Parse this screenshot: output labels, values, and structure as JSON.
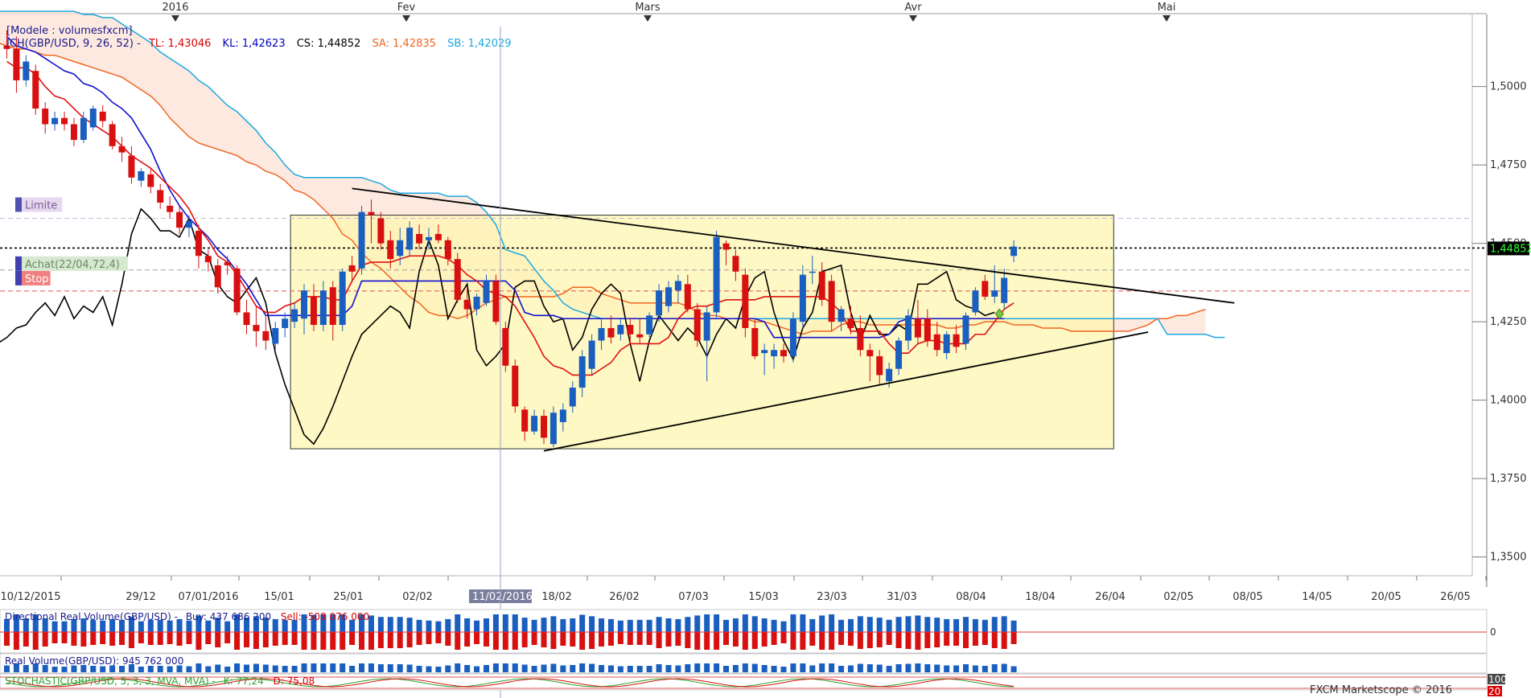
{
  "chart_data": {
    "type": "candlestick",
    "months": [
      "2016",
      "Fev",
      "Mars",
      "Avr",
      "Mai"
    ],
    "header": {
      "model": "[Modele : volumesfxcm]",
      "ich": "ICH(GBP/USD, 9, 26, 52) -",
      "tl": "TL: 1,43046",
      "kl": "KL: 1,42623",
      "cs": "CS: 1,44852",
      "sa": "SA: 1,42835",
      "sb": "SB: 1,42029"
    },
    "y_ticks": [
      "1,5000",
      "1,4750",
      "1,4500",
      "1,4250",
      "1,4000",
      "1,3750",
      "1,3500"
    ],
    "ylim": [
      1.344,
      1.523
    ],
    "last_price": "1,44852",
    "date_labels": [
      "10/12/2015",
      "29/12",
      "07/01/2016",
      "15/01",
      "25/01",
      "02/02",
      "18/02",
      "26/02",
      "07/03",
      "15/03",
      "23/03",
      "31/03",
      "08/04",
      "18/04",
      "26/04",
      "02/05",
      "08/05",
      "14/05",
      "20/05",
      "26/05"
    ],
    "cursor_date": "11/02/2016",
    "order_tags": {
      "limit": "Limite",
      "buy": "Achat(22/04,72,4)",
      "stop": "Stop"
    },
    "candles": [
      [
        1.513,
        1.518,
        1.509,
        1.512
      ],
      [
        1.512,
        1.516,
        1.498,
        1.502
      ],
      [
        1.502,
        1.51,
        1.5,
        1.508
      ],
      [
        1.505,
        1.507,
        1.491,
        1.493
      ],
      [
        1.493,
        1.495,
        1.485,
        1.488
      ],
      [
        1.488,
        1.492,
        1.486,
        1.49
      ],
      [
        1.49,
        1.492,
        1.486,
        1.488
      ],
      [
        1.488,
        1.49,
        1.481,
        1.483
      ],
      [
        1.483,
        1.492,
        1.482,
        1.49
      ],
      [
        1.487,
        1.494,
        1.486,
        1.493
      ],
      [
        1.492,
        1.494,
        1.487,
        1.489
      ],
      [
        1.488,
        1.489,
        1.48,
        1.481
      ],
      [
        1.481,
        1.484,
        1.476,
        1.479
      ],
      [
        1.478,
        1.481,
        1.469,
        1.471
      ],
      [
        1.47,
        1.474,
        1.468,
        1.473
      ],
      [
        1.472,
        1.474,
        1.466,
        1.468
      ],
      [
        1.467,
        1.469,
        1.461,
        1.463
      ],
      [
        1.462,
        1.465,
        1.458,
        1.46
      ],
      [
        1.46,
        1.462,
        1.453,
        1.455
      ],
      [
        1.455,
        1.459,
        1.452,
        1.457
      ],
      [
        1.454,
        1.456,
        1.442,
        1.446
      ],
      [
        1.446,
        1.448,
        1.441,
        1.444
      ],
      [
        1.443,
        1.445,
        1.434,
        1.436
      ],
      [
        1.444,
        1.446,
        1.44,
        1.443
      ],
      [
        1.442,
        1.443,
        1.427,
        1.428
      ],
      [
        1.428,
        1.432,
        1.421,
        1.424
      ],
      [
        1.424,
        1.43,
        1.417,
        1.422
      ],
      [
        1.422,
        1.427,
        1.416,
        1.419
      ],
      [
        1.418,
        1.425,
        1.416,
        1.423
      ],
      [
        1.423,
        1.428,
        1.42,
        1.426
      ],
      [
        1.425,
        1.431,
        1.423,
        1.429
      ],
      [
        1.426,
        1.437,
        1.421,
        1.435
      ],
      [
        1.433,
        1.437,
        1.422,
        1.424
      ],
      [
        1.424,
        1.438,
        1.422,
        1.435
      ],
      [
        1.436,
        1.438,
        1.419,
        1.424
      ],
      [
        1.424,
        1.442,
        1.422,
        1.441
      ],
      [
        1.443,
        1.446,
        1.438,
        1.441
      ],
      [
        1.442,
        1.462,
        1.44,
        1.46
      ],
      [
        1.46,
        1.464,
        1.45,
        1.459
      ],
      [
        1.458,
        1.46,
        1.448,
        1.45
      ],
      [
        1.451,
        1.454,
        1.442,
        1.445
      ],
      [
        1.446,
        1.455,
        1.443,
        1.451
      ],
      [
        1.448,
        1.457,
        1.446,
        1.455
      ],
      [
        1.453,
        1.456,
        1.448,
        1.45
      ],
      [
        1.451,
        1.455,
        1.448,
        1.452
      ],
      [
        1.453,
        1.456,
        1.45,
        1.451
      ],
      [
        1.451,
        1.452,
        1.443,
        1.445
      ],
      [
        1.445,
        1.447,
        1.431,
        1.432
      ],
      [
        1.432,
        1.436,
        1.426,
        1.429
      ],
      [
        1.429,
        1.434,
        1.427,
        1.433
      ],
      [
        1.431,
        1.44,
        1.43,
        1.438
      ],
      [
        1.438,
        1.44,
        1.424,
        1.425
      ],
      [
        1.423,
        1.425,
        1.409,
        1.411
      ],
      [
        1.411,
        1.413,
        1.396,
        1.398
      ],
      [
        1.397,
        1.398,
        1.387,
        1.39
      ],
      [
        1.39,
        1.397,
        1.389,
        1.395
      ],
      [
        1.395,
        1.397,
        1.386,
        1.388
      ],
      [
        1.386,
        1.398,
        1.385,
        1.396
      ],
      [
        1.393,
        1.399,
        1.39,
        1.397
      ],
      [
        1.398,
        1.406,
        1.396,
        1.404
      ],
      [
        1.404,
        1.416,
        1.401,
        1.414
      ],
      [
        1.41,
        1.421,
        1.408,
        1.419
      ],
      [
        1.419,
        1.426,
        1.416,
        1.423
      ],
      [
        1.423,
        1.427,
        1.418,
        1.42
      ],
      [
        1.421,
        1.426,
        1.419,
        1.424
      ],
      [
        1.424,
        1.426,
        1.418,
        1.421
      ],
      [
        1.421,
        1.426,
        1.418,
        1.42
      ],
      [
        1.421,
        1.428,
        1.42,
        1.427
      ],
      [
        1.427,
        1.437,
        1.425,
        1.435
      ],
      [
        1.43,
        1.438,
        1.428,
        1.436
      ],
      [
        1.435,
        1.44,
        1.431,
        1.438
      ],
      [
        1.437,
        1.44,
        1.428,
        1.429
      ],
      [
        1.429,
        1.431,
        1.417,
        1.419
      ],
      [
        1.419,
        1.43,
        1.406,
        1.428
      ],
      [
        1.428,
        1.454,
        1.426,
        1.452
      ],
      [
        1.45,
        1.451,
        1.443,
        1.448
      ],
      [
        1.446,
        1.448,
        1.438,
        1.441
      ],
      [
        1.44,
        1.442,
        1.42,
        1.423
      ],
      [
        1.423,
        1.426,
        1.413,
        1.414
      ],
      [
        1.415,
        1.418,
        1.408,
        1.416
      ],
      [
        1.414,
        1.418,
        1.41,
        1.416
      ],
      [
        1.416,
        1.418,
        1.412,
        1.414
      ],
      [
        1.414,
        1.428,
        1.412,
        1.426
      ],
      [
        1.425,
        1.443,
        1.423,
        1.44
      ],
      [
        1.441,
        1.446,
        1.437,
        1.441
      ],
      [
        1.441,
        1.444,
        1.43,
        1.432
      ],
      [
        1.438,
        1.44,
        1.422,
        1.425
      ],
      [
        1.425,
        1.43,
        1.422,
        1.429
      ],
      [
        1.426,
        1.43,
        1.421,
        1.423
      ],
      [
        1.423,
        1.427,
        1.414,
        1.416
      ],
      [
        1.416,
        1.418,
        1.406,
        1.414
      ],
      [
        1.414,
        1.416,
        1.405,
        1.408
      ],
      [
        1.406,
        1.412,
        1.404,
        1.41
      ],
      [
        1.41,
        1.42,
        1.408,
        1.419
      ],
      [
        1.419,
        1.429,
        1.416,
        1.427
      ],
      [
        1.426,
        1.432,
        1.418,
        1.42
      ],
      [
        1.426,
        1.429,
        1.417,
        1.419
      ],
      [
        1.421,
        1.425,
        1.414,
        1.416
      ],
      [
        1.415,
        1.422,
        1.413,
        1.421
      ],
      [
        1.421,
        1.424,
        1.415,
        1.417
      ],
      [
        1.418,
        1.428,
        1.416,
        1.427
      ],
      [
        1.428,
        1.436,
        1.427,
        1.435
      ],
      [
        1.438,
        1.44,
        1.432,
        1.433
      ],
      [
        1.433,
        1.443,
        1.431,
        1.435
      ],
      [
        1.431,
        1.442,
        1.429,
        1.439
      ],
      [
        1.446,
        1.451,
        1.444,
        1.449
      ]
    ],
    "kijun": [
      1.516,
      1.513,
      1.512,
      1.511,
      1.509,
      1.507,
      1.505,
      1.504,
      1.501,
      1.5,
      1.498,
      1.495,
      1.493,
      1.49,
      1.485,
      1.48,
      1.473,
      1.467,
      1.462,
      1.458,
      1.455,
      1.452,
      1.448,
      1.445,
      1.441,
      1.437,
      1.432,
      1.427,
      1.427,
      1.427,
      1.427,
      1.427,
      1.427,
      1.427,
      1.427,
      1.427,
      1.43,
      1.438,
      1.438,
      1.438,
      1.438,
      1.438,
      1.438,
      1.438,
      1.438,
      1.438,
      1.438,
      1.438,
      1.438,
      1.438,
      1.438,
      1.438,
      1.438,
      1.435,
      1.428,
      1.427,
      1.427,
      1.427,
      1.426,
      1.426,
      1.426,
      1.426,
      1.426,
      1.426,
      1.426,
      1.426,
      1.426,
      1.426,
      1.426,
      1.426,
      1.426,
      1.426,
      1.426,
      1.426,
      1.426,
      1.426,
      1.426,
      1.426,
      1.426,
      1.425,
      1.42,
      1.42,
      1.42,
      1.42,
      1.42,
      1.42,
      1.42,
      1.42,
      1.42,
      1.42,
      1.42,
      1.42,
      1.421,
      1.425,
      1.426,
      1.426,
      1.426,
      1.426,
      1.426,
      1.426,
      1.426,
      1.426,
      1.426,
      1.426,
      1.426
    ],
    "tenkan": [
      1.508,
      1.506,
      1.506,
      1.504,
      1.5,
      1.497,
      1.496,
      1.493,
      1.49,
      1.488,
      1.486,
      1.484,
      1.481,
      1.478,
      1.476,
      1.474,
      1.471,
      1.468,
      1.465,
      1.461,
      1.455,
      1.451,
      1.446,
      1.444,
      1.44,
      1.435,
      1.43,
      1.428,
      1.428,
      1.43,
      1.431,
      1.433,
      1.433,
      1.433,
      1.432,
      1.432,
      1.438,
      1.443,
      1.444,
      1.444,
      1.444,
      1.445,
      1.446,
      1.446,
      1.446,
      1.446,
      1.445,
      1.443,
      1.44,
      1.438,
      1.435,
      1.434,
      1.433,
      1.43,
      1.425,
      1.42,
      1.414,
      1.411,
      1.41,
      1.408,
      1.408,
      1.408,
      1.41,
      1.412,
      1.416,
      1.418,
      1.418,
      1.418,
      1.418,
      1.42,
      1.426,
      1.429,
      1.43,
      1.43,
      1.431,
      1.432,
      1.432,
      1.432,
      1.432,
      1.433,
      1.433,
      1.433,
      1.433,
      1.433,
      1.433,
      1.433,
      1.431,
      1.428,
      1.422,
      1.422,
      1.422,
      1.422,
      1.418,
      1.415,
      1.415,
      1.418,
      1.419,
      1.419,
      1.418,
      1.418,
      1.418,
      1.421,
      1.421,
      1.425,
      1.429,
      1.431
    ],
    "chikou": [
      1.415,
      1.418,
      1.42,
      1.423,
      1.424,
      1.428,
      1.431,
      1.427,
      1.433,
      1.426,
      1.43,
      1.428,
      1.433,
      1.424,
      1.437,
      1.453,
      1.461,
      1.458,
      1.454,
      1.454,
      1.452,
      1.458,
      1.448,
      1.446,
      1.437,
      1.433,
      1.431,
      1.435,
      1.439,
      1.431,
      1.415,
      1.405,
      1.397,
      1.389,
      1.386,
      1.391,
      1.398,
      1.406,
      1.414,
      1.421,
      1.424,
      1.427,
      1.43,
      1.428,
      1.423,
      1.441,
      1.451,
      1.443,
      1.426,
      1.432,
      1.437,
      1.416,
      1.411,
      1.414,
      1.418,
      1.436,
      1.438,
      1.438,
      1.43,
      1.425,
      1.426,
      1.416,
      1.42,
      1.429,
      1.434,
      1.437,
      1.434,
      1.418,
      1.406,
      1.419,
      1.427,
      1.423,
      1.419,
      1.423,
      1.42,
      1.414,
      1.421,
      1.426,
      1.423,
      1.433,
      1.439,
      1.441,
      1.428,
      1.419,
      1.413,
      1.423,
      1.428,
      1.441,
      1.442,
      1.443,
      1.428,
      1.419,
      1.427,
      1.421,
      1.421,
      1.424,
      1.422,
      1.437,
      1.437,
      1.439,
      1.441,
      1.432,
      1.43,
      1.429,
      1.427,
      1.428
    ],
    "span_a": [
      1.522,
      1.521,
      1.52,
      1.519,
      1.518,
      1.518,
      1.517,
      1.516,
      1.516,
      1.515,
      1.515,
      1.514,
      1.514,
      1.513,
      1.512,
      1.512,
      1.511,
      1.51,
      1.51,
      1.509,
      1.508,
      1.507,
      1.506,
      1.505,
      1.504,
      1.503,
      1.501,
      1.499,
      1.497,
      1.494,
      1.49,
      1.487,
      1.484,
      1.482,
      1.481,
      1.48,
      1.479,
      1.478,
      1.476,
      1.475,
      1.473,
      1.472,
      1.47,
      1.467,
      1.466,
      1.464,
      1.461,
      1.458,
      1.453,
      1.451,
      1.447,
      1.444,
      1.442,
      1.439,
      1.436,
      1.433,
      1.431,
      1.428,
      1.427,
      1.427,
      1.426,
      1.427,
      1.429,
      1.431,
      1.432,
      1.433,
      1.433,
      1.433,
      1.433,
      1.433,
      1.433,
      1.434,
      1.436,
      1.436,
      1.436,
      1.434,
      1.433,
      1.432,
      1.431,
      1.431,
      1.431,
      1.431,
      1.431,
      1.431,
      1.43,
      1.428,
      1.427,
      1.427,
      1.426,
      1.426,
      1.426,
      1.425,
      1.425,
      1.424,
      1.423,
      1.422,
      1.421,
      1.422,
      1.422,
      1.422,
      1.424,
      1.425,
      1.425,
      1.424,
      1.424,
      1.424,
      1.424,
      1.424,
      1.424,
      1.424,
      1.424,
      1.423,
      1.423,
      1.424,
      1.424,
      1.425,
      1.425,
      1.425,
      1.424,
      1.424,
      1.424,
      1.423,
      1.423,
      1.423,
      1.422,
      1.422,
      1.422,
      1.422,
      1.422,
      1.422,
      1.422,
      1.423,
      1.424,
      1.426,
      1.426,
      1.427,
      1.427,
      1.428,
      1.429
    ],
    "span_b": [
      1.524,
      1.524,
      1.524,
      1.524,
      1.524,
      1.524,
      1.524,
      1.524,
      1.524,
      1.524,
      1.524,
      1.524,
      1.524,
      1.524,
      1.524,
      1.524,
      1.524,
      1.524,
      1.524,
      1.524,
      1.524,
      1.523,
      1.523,
      1.522,
      1.522,
      1.52,
      1.518,
      1.516,
      1.514,
      1.511,
      1.509,
      1.507,
      1.505,
      1.502,
      1.5,
      1.497,
      1.494,
      1.492,
      1.489,
      1.486,
      1.482,
      1.479,
      1.475,
      1.472,
      1.471,
      1.471,
      1.471,
      1.471,
      1.471,
      1.471,
      1.471,
      1.47,
      1.469,
      1.467,
      1.466,
      1.466,
      1.466,
      1.466,
      1.466,
      1.465,
      1.465,
      1.465,
      1.463,
      1.46,
      1.456,
      1.448,
      1.447,
      1.446,
      1.442,
      1.438,
      1.435,
      1.431,
      1.429,
      1.428,
      1.427,
      1.426,
      1.426,
      1.426,
      1.426,
      1.426,
      1.426,
      1.426,
      1.426,
      1.426,
      1.426,
      1.426,
      1.426,
      1.426,
      1.426,
      1.426,
      1.426,
      1.426,
      1.426,
      1.426,
      1.426,
      1.426,
      1.426,
      1.426,
      1.426,
      1.426,
      1.426,
      1.426,
      1.426,
      1.426,
      1.426,
      1.426,
      1.426,
      1.426,
      1.426,
      1.426,
      1.426,
      1.426,
      1.426,
      1.426,
      1.426,
      1.426,
      1.426,
      1.426,
      1.426,
      1.426,
      1.426,
      1.426,
      1.426,
      1.426,
      1.426,
      1.426,
      1.426,
      1.426,
      1.426,
      1.426,
      1.426,
      1.426,
      1.426,
      1.426,
      1.421,
      1.421,
      1.421,
      1.421,
      1.421,
      1.42,
      1.42
    ],
    "kumo_offset": 13,
    "trendlines": [
      {
        "from": [
          0,
          1.45
        ],
        "to": [
          0,
          1.45
        ]
      }
    ],
    "lines": {
      "upper_trend": {
        "x1": 36,
        "y1": 1.4675,
        "x2": 128,
        "y2": 1.431
      },
      "lower_trend": {
        "x1": 56,
        "y1": 1.3838,
        "x2": 119,
        "y2": 1.4217
      },
      "last_price_level": 1.44852,
      "limit_level": 1.458,
      "buy_level": 1.4415,
      "stop_level": 1.4348
    },
    "rect": {
      "x1": 30,
      "x2": 115,
      "y1": 1.459,
      "y2": 1.3845
    },
    "panels": {
      "dir_volume": {
        "label": "Directional Real Volume(GBP/USD) -",
        "buy": "Buy: 437 686 200",
        "sell": "Sell: -508 076 000",
        "zero": "0"
      },
      "real_volume": {
        "label": "Real Volume(GBP/USD): 945 762 000"
      },
      "stochastic": {
        "label": "STOCHASTIC(GBP/USD, 5, 3, 3, MVA, MVA) -",
        "k": "K: 77,24",
        "d": "D: 75,08",
        "top": "100",
        "bottom": "20"
      }
    },
    "footer": "FXCM Marketscope © 2016"
  }
}
